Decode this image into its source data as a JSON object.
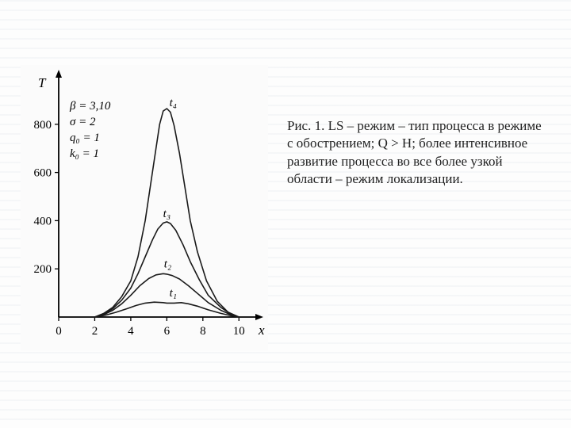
{
  "caption": {
    "text": "Рис. 1.  LS – режим – тип процесса в режиме с обострением; Q > H; более интенсивное развитие процесса во все более узкой области – режим локализации."
  },
  "chart": {
    "type": "line",
    "background_color": "#fbfbfb",
    "line_color": "#1a1a1a",
    "axis_color": "#000000",
    "tick_font_size": 15,
    "label_font_size": 17,
    "curve_label_font_size": 15,
    "param_font_size": 15,
    "line_width": 1.6,
    "axis_width": 1.8,
    "x_axis": {
      "label": "x",
      "min": 0,
      "max": 11,
      "ticks": [
        0,
        2,
        4,
        6,
        8,
        10
      ]
    },
    "y_axis": {
      "label": "T",
      "min": 0,
      "max": 1000,
      "ticks": [
        0,
        200,
        400,
        600,
        800
      ]
    },
    "params": [
      "β = 3,10",
      "σ = 2",
      "q₀ = 1",
      "k₀ = 1"
    ],
    "curves": [
      {
        "label": "t₁",
        "label_x": 6.35,
        "label_y": 85,
        "points": [
          [
            2.0,
            0
          ],
          [
            2.6,
            8
          ],
          [
            3.2,
            20
          ],
          [
            3.8,
            35
          ],
          [
            4.3,
            48
          ],
          [
            4.8,
            58
          ],
          [
            5.3,
            62
          ],
          [
            5.8,
            60
          ],
          [
            6.0,
            58
          ],
          [
            6.4,
            58
          ],
          [
            6.8,
            60
          ],
          [
            7.2,
            55
          ],
          [
            7.7,
            45
          ],
          [
            8.3,
            30
          ],
          [
            9.0,
            15
          ],
          [
            9.6,
            5
          ],
          [
            10.0,
            0
          ]
        ]
      },
      {
        "label": "t₂",
        "label_x": 6.05,
        "label_y": 205,
        "points": [
          [
            2.0,
            0
          ],
          [
            2.5,
            10
          ],
          [
            3.0,
            28
          ],
          [
            3.5,
            55
          ],
          [
            4.0,
            90
          ],
          [
            4.5,
            130
          ],
          [
            5.0,
            160
          ],
          [
            5.4,
            175
          ],
          [
            5.8,
            180
          ],
          [
            6.0,
            178
          ],
          [
            6.3,
            172
          ],
          [
            6.7,
            158
          ],
          [
            7.2,
            130
          ],
          [
            7.7,
            98
          ],
          [
            8.3,
            60
          ],
          [
            9.0,
            28
          ],
          [
            9.6,
            8
          ],
          [
            10.0,
            0
          ]
        ]
      },
      {
        "label": "t₃",
        "label_x": 6.0,
        "label_y": 415,
        "points": [
          [
            2.0,
            0
          ],
          [
            2.5,
            12
          ],
          [
            3.0,
            35
          ],
          [
            3.5,
            70
          ],
          [
            4.0,
            120
          ],
          [
            4.4,
            180
          ],
          [
            4.8,
            250
          ],
          [
            5.2,
            320
          ],
          [
            5.5,
            365
          ],
          [
            5.8,
            390
          ],
          [
            6.0,
            395
          ],
          [
            6.2,
            388
          ],
          [
            6.5,
            360
          ],
          [
            6.9,
            300
          ],
          [
            7.3,
            230
          ],
          [
            7.8,
            155
          ],
          [
            8.3,
            90
          ],
          [
            9.0,
            40
          ],
          [
            9.6,
            10
          ],
          [
            10.0,
            0
          ]
        ]
      },
      {
        "label": "t₄",
        "label_x": 6.35,
        "label_y": 875,
        "points": [
          [
            2.0,
            0
          ],
          [
            2.5,
            15
          ],
          [
            3.0,
            40
          ],
          [
            3.5,
            85
          ],
          [
            4.0,
            150
          ],
          [
            4.4,
            250
          ],
          [
            4.8,
            400
          ],
          [
            5.1,
            550
          ],
          [
            5.4,
            700
          ],
          [
            5.6,
            800
          ],
          [
            5.8,
            855
          ],
          [
            6.0,
            865
          ],
          [
            6.2,
            850
          ],
          [
            6.4,
            795
          ],
          [
            6.7,
            680
          ],
          [
            7.0,
            540
          ],
          [
            7.3,
            400
          ],
          [
            7.7,
            270
          ],
          [
            8.2,
            150
          ],
          [
            8.8,
            65
          ],
          [
            9.4,
            20
          ],
          [
            10.0,
            0
          ]
        ]
      }
    ]
  }
}
